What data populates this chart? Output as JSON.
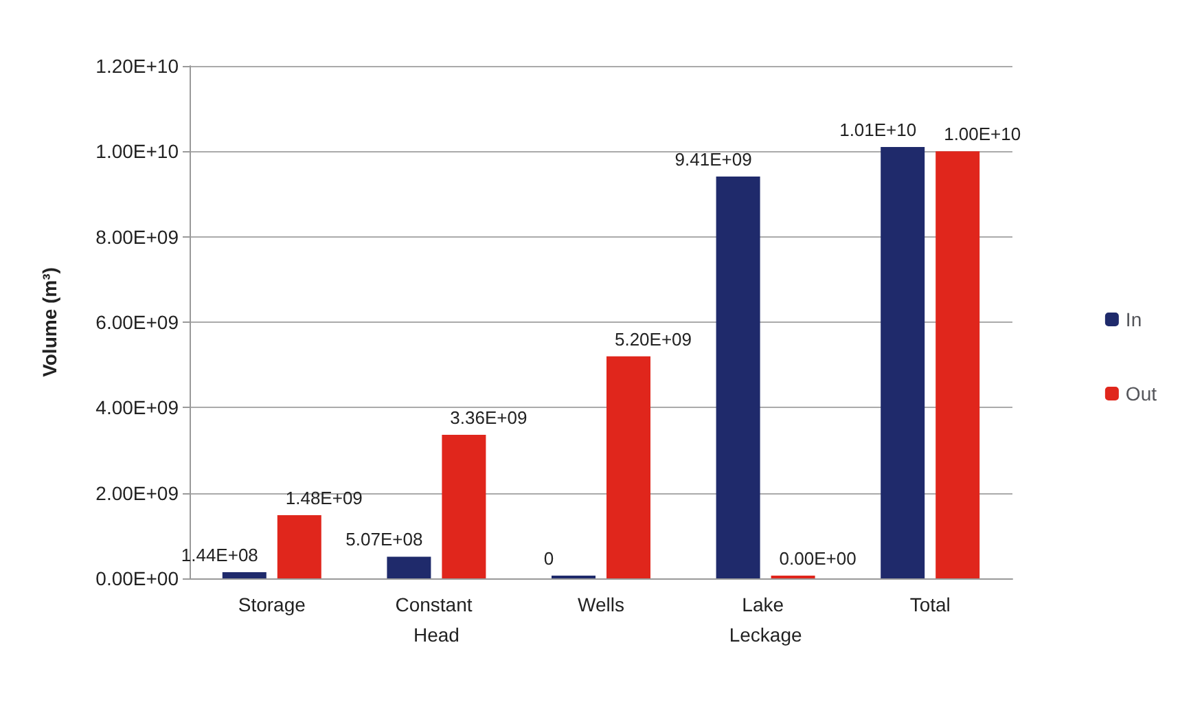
{
  "chart_data": {
    "type": "bar",
    "ylabel": "Volume (m³)",
    "categories": [
      "Storage",
      "Constant Head",
      "Wells",
      "Lake Leckage",
      "Total"
    ],
    "series": [
      {
        "name": "In",
        "color": "#1f2a6b",
        "values": [
          144000000,
          507000000,
          0,
          9410000000,
          10100000000
        ],
        "value_labels": [
          "1.44E+08",
          "5.07E+08",
          "0",
          "9.41E+09",
          "1.01E+10"
        ]
      },
      {
        "name": "Out",
        "color": "#e0261c",
        "values": [
          1480000000,
          3360000000,
          5200000000,
          0,
          10000000000
        ],
        "value_labels": [
          "1.48E+09",
          "3.36E+09",
          "5.20E+09",
          "0.00E+00",
          "1.00E+10"
        ]
      }
    ],
    "ylim": [
      0,
      12000000000
    ],
    "yticks": [
      {
        "value": 0,
        "label": "0.00E+00"
      },
      {
        "value": 2000000000,
        "label": "2.00E+09"
      },
      {
        "value": 4000000000,
        "label": "4.00E+09"
      },
      {
        "value": 6000000000,
        "label": "6.00E+09"
      },
      {
        "value": 8000000000,
        "label": "8.00E+09"
      },
      {
        "value": 10000000000,
        "label": "1.00E+10"
      },
      {
        "value": 12000000000,
        "label": "1.20E+10"
      }
    ],
    "grid": true,
    "legend": "right"
  }
}
